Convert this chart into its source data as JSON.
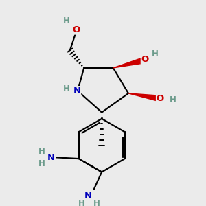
{
  "background_color": "#ebebeb",
  "atom_colors": {
    "C": "#000000",
    "N": "#0000bb",
    "O": "#cc0000",
    "H": "#6a9a8a"
  },
  "bond_lw": 1.6,
  "figsize": [
    3.0,
    3.0
  ],
  "dpi": 100
}
